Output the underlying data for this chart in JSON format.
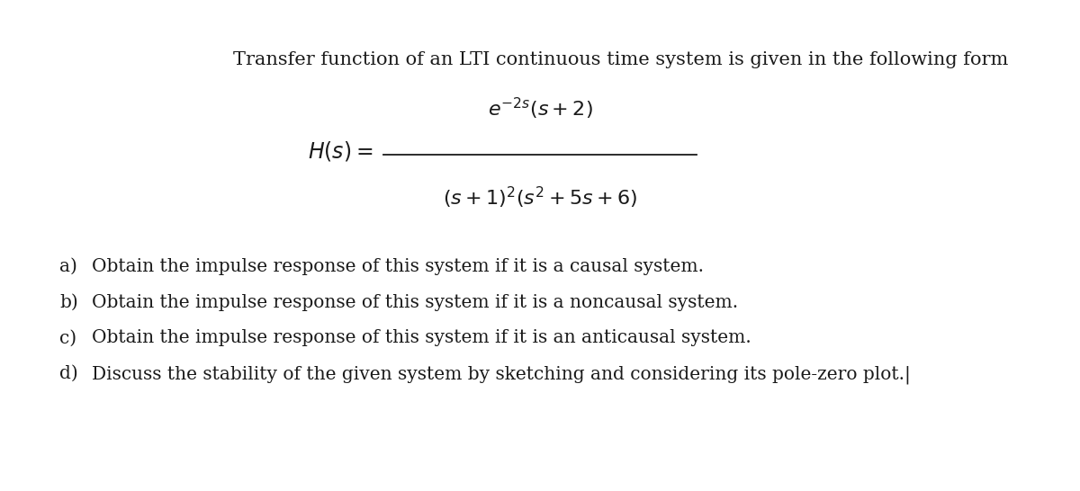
{
  "background_color": "#ffffff",
  "text_color": "#1a1a1a",
  "title_text": "Transfer function of an LTI continuous time system is given in the following form",
  "title_fontsize": 15.0,
  "formula_fontsize": 16.0,
  "items_fontsize": 14.5,
  "items": [
    {
      "label": "a)",
      "text": "Obtain the impulse response of this system if it is a causal system."
    },
    {
      "label": "b)",
      "text": "Obtain the impulse response of this system if it is a noncausal system."
    },
    {
      "label": "c)",
      "text": "Obtain the impulse response of this system if it is an anticausal system."
    },
    {
      "label": "d)",
      "text": "Discuss the stability of the given system by sketching and considering its pole-zero plot.|"
    }
  ]
}
